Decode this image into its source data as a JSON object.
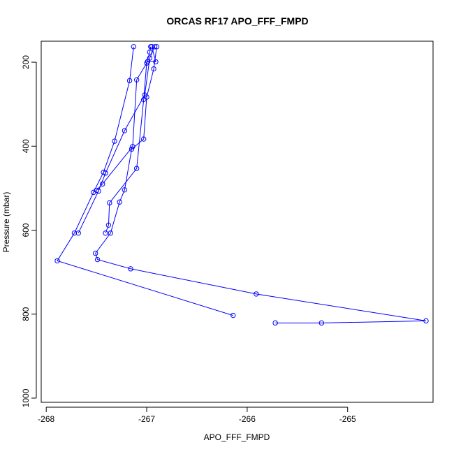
{
  "chart_data": {
    "type": "line",
    "title": "ORCAS RF17 APO_FFF_FMPD",
    "xlabel": "APO_FFF_FMPD",
    "ylabel": "Pressure (mbar)",
    "xlim": [
      -268.05,
      -264.15
    ],
    "ylim": [
      1010,
      150
    ],
    "y_reversed": true,
    "xticks": [
      -268,
      -267,
      -266,
      -265
    ],
    "yticks": [
      200,
      400,
      600,
      800,
      1000
    ],
    "grid": false,
    "legend": "none",
    "series_color": "#0000ff",
    "series": [
      {
        "values": [
          {
            "x": -267.13,
            "y": 163
          },
          {
            "x": -267.17,
            "y": 244
          },
          {
            "x": -267.32,
            "y": 388
          },
          {
            "x": -267.43,
            "y": 462
          },
          {
            "x": -267.53,
            "y": 510
          },
          {
            "x": -267.72,
            "y": 607
          },
          {
            "x": -267.89,
            "y": 673
          },
          {
            "x": -266.14,
            "y": 803
          }
        ]
      },
      {
        "values": [
          {
            "x": -266.9,
            "y": 163
          },
          {
            "x": -266.93,
            "y": 216
          },
          {
            "x": -267.0,
            "y": 283
          },
          {
            "x": -267.03,
            "y": 383
          },
          {
            "x": -267.15,
            "y": 407
          },
          {
            "x": -267.22,
            "y": 504
          },
          {
            "x": -267.27,
            "y": 533
          },
          {
            "x": -267.36,
            "y": 607
          },
          {
            "x": -267.51,
            "y": 655
          },
          {
            "x": -267.49,
            "y": 670
          },
          {
            "x": -267.16,
            "y": 692
          },
          {
            "x": -265.91,
            "y": 752
          },
          {
            "x": -264.22,
            "y": 816
          },
          {
            "x": -265.26,
            "y": 821
          },
          {
            "x": -265.72,
            "y": 821
          }
        ]
      },
      {
        "values": [
          {
            "x": -266.92,
            "y": 163
          },
          {
            "x": -266.97,
            "y": 190
          },
          {
            "x": -267.02,
            "y": 278
          },
          {
            "x": -267.22,
            "y": 363
          },
          {
            "x": -267.41,
            "y": 464
          },
          {
            "x": -267.48,
            "y": 507
          },
          {
            "x": -267.68,
            "y": 607
          }
        ]
      },
      {
        "values": [
          {
            "x": -266.95,
            "y": 163
          },
          {
            "x": -266.91,
            "y": 199
          },
          {
            "x": -266.99,
            "y": 198
          },
          {
            "x": -267.1,
            "y": 242
          },
          {
            "x": -267.14,
            "y": 401
          },
          {
            "x": -267.44,
            "y": 490
          },
          {
            "x": -267.5,
            "y": 505
          }
        ]
      },
      {
        "values": [
          {
            "x": -266.96,
            "y": 163
          },
          {
            "x": -266.97,
            "y": 176
          },
          {
            "x": -267.0,
            "y": 202
          },
          {
            "x": -267.03,
            "y": 289
          },
          {
            "x": -267.1,
            "y": 453
          },
          {
            "x": -267.37,
            "y": 535
          },
          {
            "x": -267.38,
            "y": 588
          },
          {
            "x": -267.41,
            "y": 607
          }
        ]
      }
    ]
  }
}
